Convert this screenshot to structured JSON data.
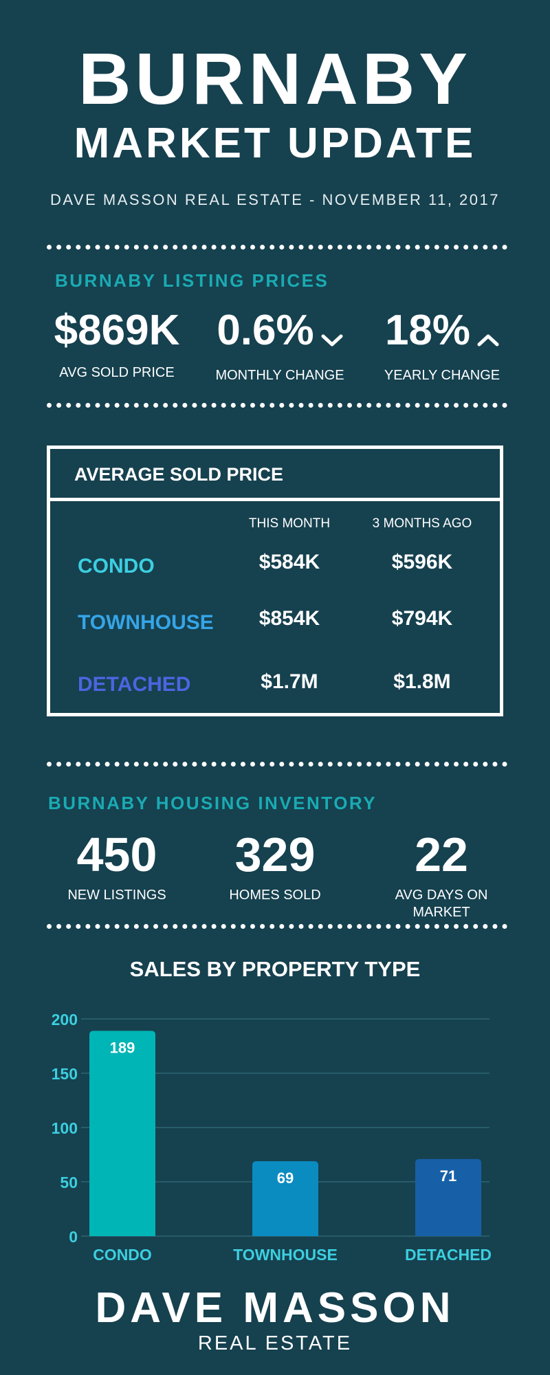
{
  "header": {
    "title": "BURNABY",
    "subtitle_main": "MARKET UPDATE",
    "byline": "DAVE MASSON REAL ESTATE - NOVEMBER 11, 2017"
  },
  "listing_prices": {
    "heading": "BURNABY LISTING PRICES",
    "stats": [
      {
        "value": "$869K",
        "label": "AVG SOLD PRICE"
      },
      {
        "value": "0.6%",
        "label": "MONTHLY CHANGE",
        "icon": "chevron-down-icon"
      },
      {
        "value": "18%",
        "label": "YEARLY CHANGE",
        "icon": "chevron-up-icon"
      }
    ]
  },
  "avg_sold": {
    "title": "AVERAGE SOLD PRICE",
    "col_headers": [
      "THIS MONTH",
      "3 MONTHS AGO"
    ],
    "rows": [
      {
        "label": "CONDO",
        "color": "#3ccfe0",
        "this_month": "$584K",
        "three_months": "$596K"
      },
      {
        "label": "TOWNHOUSE",
        "color": "#35a5e8",
        "this_month": "$854K",
        "three_months": "$794K"
      },
      {
        "label": "DETACHED",
        "color": "#4a66e0",
        "this_month": "$1.7M",
        "three_months": "$1.8M"
      }
    ]
  },
  "inventory": {
    "heading": "BURNABY HOUSING INVENTORY",
    "stats": [
      {
        "value": "450",
        "label": "NEW LISTINGS"
      },
      {
        "value": "329",
        "label": "HOMES SOLD"
      },
      {
        "value": "22",
        "label_line1": "AVG DAYS ON",
        "label_line2": "MARKET"
      }
    ]
  },
  "chart_data": {
    "type": "bar",
    "title": "SALES  BY PROPERTY TYPE",
    "categories": [
      "CONDO",
      "TOWNHOUSE",
      "DETACHED"
    ],
    "values": [
      189,
      69,
      71
    ],
    "colors": [
      "#00b5b5",
      "#0a8cc0",
      "#1760a8"
    ],
    "ylim": [
      0,
      200
    ],
    "yticks": [
      0,
      50,
      100,
      150,
      200
    ],
    "grid": true,
    "xlabel": "",
    "ylabel": ""
  },
  "footer": {
    "name": "DAVE MASSON",
    "tagline": "REAL ESTATE"
  },
  "colors": {
    "background": "#16414f",
    "accent": "#1aabb3",
    "axis_text": "#3ccfe0"
  }
}
